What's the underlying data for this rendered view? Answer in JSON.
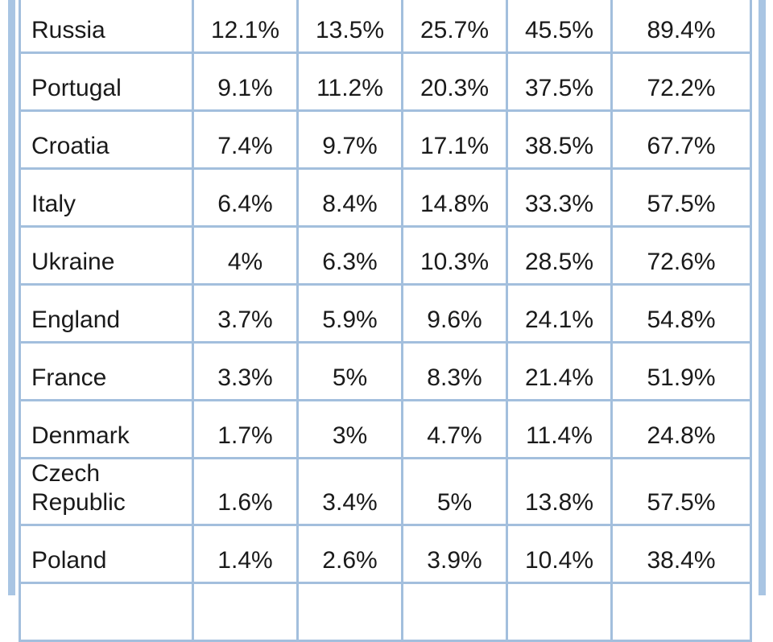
{
  "table": {
    "rows": [
      [
        "Russia",
        "12.1%",
        "13.5%",
        "25.7%",
        "45.5%",
        "89.4%"
      ],
      [
        "Portugal",
        "9.1%",
        "11.2%",
        "20.3%",
        "37.5%",
        "72.2%"
      ],
      [
        "Croatia",
        "7.4%",
        "9.7%",
        "17.1%",
        "38.5%",
        "67.7%"
      ],
      [
        "Italy",
        "6.4%",
        "8.4%",
        "14.8%",
        "33.3%",
        "57.5%"
      ],
      [
        "Ukraine",
        "4%",
        "6.3%",
        "10.3%",
        "28.5%",
        "72.6%"
      ],
      [
        "England",
        "3.7%",
        "5.9%",
        "9.6%",
        "24.1%",
        "54.8%"
      ],
      [
        "France",
        "3.3%",
        "5%",
        "8.3%",
        "21.4%",
        "51.9%"
      ],
      [
        "Denmark",
        "1.7%",
        "3%",
        "4.7%",
        "11.4%",
        "24.8%"
      ],
      [
        "Czech Republic",
        "1.6%",
        "3.4%",
        "5%",
        "13.8%",
        "57.5%"
      ],
      [
        "Poland",
        "1.4%",
        "2.6%",
        "3.9%",
        "10.4%",
        "38.4%"
      ]
    ]
  }
}
